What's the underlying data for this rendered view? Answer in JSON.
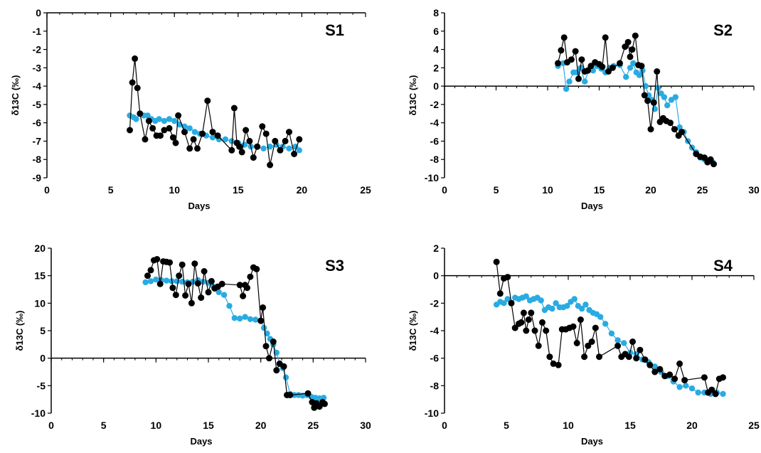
{
  "chart_data": [
    {
      "type": "scatter",
      "title": "S1",
      "xlabel": "Days",
      "ylabel": "δ13C (‰)",
      "xlim": [
        0,
        25
      ],
      "ylim": [
        -9,
        0
      ],
      "xticks": [
        0,
        5,
        10,
        15,
        20,
        25
      ],
      "yticks": [
        0,
        -1,
        -2,
        -3,
        -4,
        -5,
        -6,
        -7,
        -8,
        -9
      ],
      "grid": false,
      "series": [
        {
          "color": "#29abe2",
          "x": [
            6.5,
            6.8,
            7.0,
            7.3,
            7.6,
            7.9,
            8.2,
            8.5,
            8.8,
            9.2,
            9.6,
            10.0,
            10.4,
            10.8,
            11.2,
            11.6,
            12.0,
            12.5,
            13.0,
            13.5,
            14.0,
            14.5,
            15.0,
            15.5,
            16.0,
            16.5,
            17.0,
            17.5,
            18.0,
            18.5,
            19.0,
            19.5,
            19.8
          ],
          "y": [
            -5.6,
            -5.7,
            -5.8,
            -5.5,
            -5.6,
            -5.6,
            -5.8,
            -5.9,
            -5.8,
            -5.9,
            -5.8,
            -5.9,
            -6.1,
            -6.2,
            -6.3,
            -6.5,
            -6.6,
            -6.7,
            -6.8,
            -6.9,
            -6.9,
            -7.0,
            -7.1,
            -7.2,
            -7.3,
            -7.3,
            -7.4,
            -7.3,
            -7.2,
            -7.3,
            -7.4,
            -7.3,
            -7.5
          ]
        },
        {
          "color": "#000000",
          "x": [
            6.5,
            6.7,
            6.9,
            7.1,
            7.3,
            7.7,
            8.0,
            8.3,
            8.6,
            8.9,
            9.2,
            9.6,
            9.9,
            10.1,
            10.3,
            10.8,
            11.2,
            11.5,
            11.8,
            12.2,
            12.6,
            13.0,
            13.4,
            14.5,
            14.7,
            14.9,
            15.1,
            15.3,
            15.6,
            15.9,
            16.2,
            16.5,
            16.9,
            17.2,
            17.5,
            17.9,
            18.3,
            18.7,
            19.0,
            19.4,
            19.8
          ],
          "y": [
            -6.4,
            -3.8,
            -2.5,
            -4.1,
            -5.5,
            -6.9,
            -5.9,
            -6.3,
            -6.7,
            -6.7,
            -6.4,
            -6.3,
            -6.8,
            -7.1,
            -5.6,
            -6.5,
            -7.4,
            -6.9,
            -7.4,
            -6.6,
            -4.8,
            -6.5,
            -6.7,
            -7.5,
            -5.2,
            -7.1,
            -7.3,
            -7.6,
            -6.4,
            -7.0,
            -7.9,
            -7.3,
            -6.2,
            -6.6,
            -8.3,
            -7.0,
            -7.5,
            -7.0,
            -6.5,
            -7.7,
            -6.9
          ]
        }
      ]
    },
    {
      "type": "scatter",
      "title": "S2",
      "xlabel": "Days",
      "ylabel": "δ13C (‰)",
      "xlim": [
        0,
        30
      ],
      "ylim": [
        -10,
        8
      ],
      "xticks": [
        0,
        5,
        10,
        15,
        20,
        25,
        30
      ],
      "yticks": [
        8,
        6,
        4,
        2,
        0,
        -2,
        -4,
        -6,
        -8,
        -10
      ],
      "grid": false,
      "series": [
        {
          "color": "#29abe2",
          "x": [
            11.0,
            11.5,
            11.8,
            12.1,
            12.5,
            12.8,
            13.2,
            13.6,
            14.0,
            14.4,
            14.8,
            15.2,
            15.6,
            16.0,
            16.4,
            17.0,
            17.6,
            18.0,
            18.3,
            18.6,
            18.9,
            19.2,
            19.5,
            19.8,
            20.1,
            20.4,
            20.7,
            21.0,
            21.3,
            21.6,
            22.0,
            22.4,
            22.8,
            23.2,
            23.6,
            24.0,
            24.4,
            24.8,
            25.2,
            25.6,
            26.0
          ],
          "y": [
            2.2,
            2.5,
            -0.3,
            0.5,
            1.5,
            1.5,
            2.0,
            0.5,
            1.8,
            1.7,
            2.2,
            1.9,
            1.5,
            2.0,
            2.2,
            2.3,
            1.0,
            2.0,
            2.5,
            1.5,
            1.2,
            1.7,
            0.0,
            -1.0,
            -1.5,
            -2.5,
            -0.2,
            -0.8,
            -1.2,
            -2.1,
            -1.5,
            -1.2,
            -4.5,
            -5.0,
            -6.0,
            -6.7,
            -7.2,
            -7.8,
            -8.0,
            -8.1,
            -8.3
          ]
        },
        {
          "color": "#000000",
          "x": [
            11.0,
            11.3,
            11.6,
            11.9,
            12.3,
            12.7,
            13.0,
            13.3,
            13.6,
            13.9,
            14.2,
            14.6,
            15.0,
            15.3,
            15.6,
            15.9,
            16.3,
            17.0,
            17.5,
            17.8,
            18.0,
            18.2,
            18.5,
            18.8,
            19.1,
            19.4,
            19.7,
            20.0,
            20.3,
            20.6,
            20.9,
            21.2,
            21.5,
            21.9,
            22.3,
            22.7,
            23.0,
            24.4,
            24.8,
            25.2,
            25.5,
            25.8,
            26.1
          ],
          "y": [
            2.5,
            3.9,
            5.3,
            2.6,
            2.9,
            3.8,
            0.8,
            2.9,
            1.6,
            1.7,
            2.2,
            2.6,
            2.4,
            2.1,
            5.3,
            1.6,
            2.0,
            2.5,
            4.3,
            4.8,
            3.2,
            4.0,
            5.5,
            2.3,
            2.2,
            -1.0,
            -1.6,
            -4.7,
            -1.8,
            1.6,
            -3.9,
            -3.5,
            -3.8,
            -4.0,
            -4.7,
            -5.4,
            -5.0,
            -7.4,
            -7.7,
            -7.8,
            -8.3,
            -8.0,
            -8.5
          ]
        }
      ]
    },
    {
      "type": "scatter",
      "title": "S3",
      "xlabel": "Days",
      "ylabel": "δ13C (‰)",
      "xlim": [
        0,
        30
      ],
      "ylim": [
        -10,
        20
      ],
      "xticks": [
        0,
        5,
        10,
        15,
        20,
        25,
        30
      ],
      "yticks": [
        20,
        15,
        10,
        5,
        0,
        -5,
        -10
      ],
      "grid": false,
      "series": [
        {
          "color": "#29abe2",
          "x": [
            9.0,
            9.5,
            10.0,
            10.5,
            11.0,
            11.5,
            12.0,
            12.5,
            13.0,
            13.5,
            14.0,
            14.5,
            15.0,
            15.5,
            16.0,
            16.5,
            17.0,
            17.5,
            18.0,
            18.5,
            19.0,
            19.5,
            20.0,
            20.3,
            20.6,
            20.9,
            21.2,
            21.5,
            21.8,
            22.1,
            22.4,
            22.8,
            23.2,
            23.6,
            24.0,
            24.4,
            24.8,
            25.2,
            25.6,
            26.0
          ],
          "y": [
            13.8,
            14.0,
            14.3,
            14.2,
            14.1,
            14.0,
            14.0,
            13.9,
            13.8,
            13.9,
            14.2,
            13.9,
            13.7,
            13.0,
            12.0,
            11.5,
            9.5,
            7.3,
            7.2,
            7.5,
            7.1,
            7.0,
            6.8,
            5.5,
            4.5,
            3.5,
            2.5,
            1.0,
            -1.0,
            -1.8,
            -3.5,
            -6.5,
            -6.7,
            -6.7,
            -6.8,
            -6.7,
            -7.0,
            -7.2,
            -7.3,
            -7.2
          ]
        },
        {
          "color": "#000000",
          "x": [
            9.2,
            9.5,
            9.8,
            10.1,
            10.4,
            10.7,
            11.0,
            11.3,
            11.6,
            11.9,
            12.2,
            12.5,
            12.8,
            13.1,
            13.4,
            13.7,
            14.0,
            14.3,
            14.6,
            15.0,
            15.3,
            15.6,
            15.9,
            16.3,
            18.0,
            18.3,
            18.5,
            18.7,
            19.0,
            19.3,
            19.6,
            20.0,
            20.2,
            20.5,
            20.8,
            21.2,
            21.5,
            21.8,
            22.2,
            22.5,
            22.8,
            24.5,
            24.9,
            25.1,
            25.3,
            25.6,
            25.9,
            26.1
          ],
          "y": [
            15.0,
            16.0,
            17.8,
            18.0,
            13.5,
            17.6,
            17.5,
            17.4,
            12.8,
            11.5,
            15.0,
            17.0,
            11.4,
            13.5,
            10.0,
            17.2,
            13.6,
            11.0,
            15.8,
            12.0,
            14.0,
            12.7,
            13.0,
            13.5,
            13.3,
            11.3,
            13.3,
            12.8,
            14.8,
            16.5,
            16.2,
            6.8,
            9.2,
            2.2,
            0.0,
            3.0,
            -2.2,
            -1.0,
            -1.5,
            -6.7,
            -6.7,
            -6.4,
            -8.0,
            -9.0,
            -8.2,
            -8.8,
            -8.0,
            -8.3
          ]
        }
      ]
    },
    {
      "type": "scatter",
      "title": "S4",
      "xlabel": "Days",
      "ylabel": "δ13C (‰)",
      "xlim": [
        0,
        25
      ],
      "ylim": [
        -10,
        2
      ],
      "xticks": [
        0,
        5,
        10,
        15,
        20,
        25
      ],
      "yticks": [
        2,
        0,
        -2,
        -4,
        -6,
        -8,
        -10
      ],
      "grid": false,
      "series": [
        {
          "color": "#29abe2",
          "x": [
            4.2,
            4.5,
            4.8,
            5.1,
            5.4,
            5.7,
            6.0,
            6.3,
            6.6,
            6.9,
            7.2,
            7.5,
            7.8,
            8.1,
            8.4,
            8.7,
            9.0,
            9.3,
            9.6,
            9.9,
            10.2,
            10.5,
            10.8,
            11.1,
            11.4,
            11.7,
            12.0,
            12.3,
            12.6,
            13.0,
            13.5,
            14.0,
            14.5,
            15.0,
            15.5,
            16.0,
            16.5,
            17.0,
            17.5,
            18.0,
            18.5,
            19.0,
            19.5,
            20.0,
            20.5,
            21.0,
            21.5,
            22.0,
            22.5
          ],
          "y": [
            -2.1,
            -1.9,
            -2.0,
            -1.7,
            -2.0,
            -1.6,
            -1.7,
            -1.6,
            -1.5,
            -1.8,
            -1.7,
            -1.6,
            -1.8,
            -2.5,
            -2.3,
            -2.4,
            -2.0,
            -2.3,
            -2.3,
            -2.2,
            -1.9,
            -1.7,
            -2.2,
            -2.4,
            -2.1,
            -2.5,
            -2.7,
            -2.8,
            -3.0,
            -3.5,
            -4.2,
            -4.7,
            -4.9,
            -5.6,
            -5.7,
            -6.1,
            -6.3,
            -6.6,
            -7.0,
            -7.3,
            -7.7,
            -8.1,
            -8.0,
            -8.2,
            -8.5,
            -8.5,
            -8.6,
            -8.5,
            -8.6
          ]
        },
        {
          "color": "#000000",
          "x": [
            4.2,
            4.5,
            4.8,
            5.1,
            5.4,
            5.7,
            6.0,
            6.2,
            6.4,
            6.6,
            6.8,
            7.0,
            7.3,
            7.6,
            7.9,
            8.2,
            8.5,
            8.8,
            9.2,
            9.5,
            9.8,
            10.1,
            10.4,
            10.7,
            11.0,
            11.3,
            11.6,
            11.9,
            12.2,
            12.5,
            14.0,
            14.3,
            14.6,
            14.9,
            15.2,
            15.5,
            15.8,
            16.2,
            16.6,
            17.0,
            17.4,
            17.8,
            18.2,
            18.6,
            19.0,
            19.4,
            21.0,
            21.3,
            21.6,
            21.9,
            22.2,
            22.5
          ],
          "y": [
            1.0,
            -1.3,
            -0.2,
            -0.1,
            -2.0,
            -3.8,
            -3.5,
            -3.4,
            -2.7,
            -4.0,
            -3.2,
            -2.7,
            -4.0,
            -5.1,
            -3.4,
            -4.0,
            -5.9,
            -6.4,
            -6.5,
            -3.9,
            -3.9,
            -3.8,
            -3.7,
            -4.9,
            -3.2,
            -5.9,
            -5.1,
            -4.8,
            -3.8,
            -5.9,
            -5.1,
            -5.9,
            -5.7,
            -5.9,
            -4.8,
            -6.0,
            -5.4,
            -6.1,
            -6.5,
            -7.0,
            -6.8,
            -7.3,
            -7.2,
            -7.5,
            -6.4,
            -7.6,
            -7.4,
            -8.5,
            -8.3,
            -8.6,
            -7.5,
            -7.4
          ]
        }
      ]
    }
  ]
}
